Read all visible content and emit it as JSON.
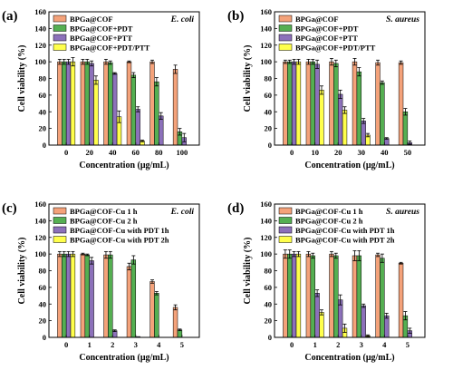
{
  "colors": {
    "orange": "#F4A27A",
    "green": "#55AF52",
    "purple": "#8C71BA",
    "yellow": "#FFFF4C"
  },
  "chart_data": [
    {
      "panel": "(a)",
      "organism": "E. coli",
      "type": "bar",
      "xlabel": "Concentration (μg/mL)",
      "ylabel": "Cell viability (%)",
      "ylim": [
        0,
        160
      ],
      "yticks": [
        0,
        20,
        40,
        60,
        80,
        100,
        120,
        140,
        160
      ],
      "legend_position": "top-left",
      "categories": [
        "0",
        "20",
        "40",
        "60",
        "80",
        "100"
      ],
      "series": [
        {
          "name": "BPGa@COF",
          "color": "orange",
          "values": [
            100,
            100,
            100,
            100,
            100,
            91
          ],
          "errors": [
            3,
            3,
            3,
            1,
            2,
            5
          ]
        },
        {
          "name": "BPGa@COF+PDT",
          "color": "green",
          "values": [
            100,
            100,
            99,
            84,
            76,
            16
          ],
          "errors": [
            3,
            3,
            2,
            3,
            5,
            4
          ]
        },
        {
          "name": "BPGa@COF+PTT",
          "color": "purple",
          "values": [
            100,
            98,
            86,
            43,
            35,
            9
          ],
          "errors": [
            3,
            3,
            1,
            3,
            4,
            5
          ]
        },
        {
          "name": "BPGa@COF+PDT/PTT",
          "color": "yellow",
          "values": [
            100,
            78,
            34,
            5,
            0,
            0
          ],
          "errors": [
            5,
            5,
            7,
            1,
            0,
            0
          ]
        }
      ]
    },
    {
      "panel": "(b)",
      "organism": "S. aureus",
      "type": "bar",
      "xlabel": "Concentration (μg/mL)",
      "ylabel": "Cell viability (%)",
      "ylim": [
        0,
        160
      ],
      "yticks": [
        0,
        20,
        40,
        60,
        80,
        100,
        120,
        140,
        160
      ],
      "legend_position": "top-left",
      "categories": [
        "0",
        "10",
        "20",
        "30",
        "40",
        "50"
      ],
      "series": [
        {
          "name": "BPGa@COF",
          "color": "orange",
          "values": [
            100,
            100,
            100,
            100,
            99,
            99
          ],
          "errors": [
            2,
            3,
            4,
            4,
            3,
            2
          ]
        },
        {
          "name": "BPGa@COF+PDT",
          "color": "green",
          "values": [
            100,
            100,
            98,
            88,
            75,
            40
          ],
          "errors": [
            2,
            3,
            4,
            5,
            2,
            4
          ]
        },
        {
          "name": "BPGa@COF+PTT",
          "color": "purple",
          "values": [
            100,
            97,
            61,
            29,
            8,
            3
          ],
          "errors": [
            3,
            5,
            5,
            3,
            1,
            2
          ]
        },
        {
          "name": "BPGa@COF+PDT/PTT",
          "color": "yellow",
          "values": [
            100,
            66,
            42,
            12,
            0,
            0
          ],
          "errors": [
            3,
            5,
            4,
            2,
            0,
            0
          ]
        }
      ]
    },
    {
      "panel": "(c)",
      "organism": "E. coli",
      "type": "bar",
      "xlabel": "Concentration (μg/mL)",
      "ylabel": "Cell viability (%)",
      "ylim": [
        0,
        160
      ],
      "yticks": [
        0,
        20,
        40,
        60,
        80,
        100,
        120,
        140,
        160
      ],
      "legend_position": "top-left",
      "categories": [
        "0",
        "1",
        "2",
        "3",
        "4",
        "5"
      ],
      "series": [
        {
          "name": "BPGa@COF-Cu 1 h",
          "color": "orange",
          "values": [
            100,
            100,
            99,
            85,
            67,
            36
          ],
          "errors": [
            3,
            1,
            4,
            4,
            2,
            3
          ]
        },
        {
          "name": "BPGa@COF-Cu 2 h",
          "color": "green",
          "values": [
            100,
            99,
            99,
            93,
            53,
            9
          ],
          "errors": [
            3,
            1,
            4,
            5,
            2,
            1
          ]
        },
        {
          "name": "BPGa@COF-Cu with PDT 1h",
          "color": "purple",
          "values": [
            100,
            92,
            8,
            1,
            0,
            0
          ],
          "errors": [
            3,
            4,
            1,
            0,
            0,
            0
          ]
        },
        {
          "name": "BPGa@COF-Cu with PDT 2h",
          "color": "yellow",
          "values": [
            100,
            0,
            0,
            0,
            0,
            0
          ],
          "errors": [
            3,
            0,
            0,
            0,
            0,
            0
          ]
        }
      ]
    },
    {
      "panel": "(d)",
      "organism": "S. aureus",
      "type": "bar",
      "xlabel": "Concentration (μg/mL)",
      "ylabel": "Cell viability (%)",
      "ylim": [
        0,
        160
      ],
      "yticks": [
        0,
        20,
        40,
        60,
        80,
        100,
        120,
        140,
        160
      ],
      "legend_position": "top-left",
      "categories": [
        "0",
        "1",
        "2",
        "3",
        "4",
        "5"
      ],
      "series": [
        {
          "name": "BPGa@COF-Cu 1 h",
          "color": "orange",
          "values": [
            100,
            100,
            100,
            98,
            99,
            89
          ],
          "errors": [
            5,
            3,
            3,
            6,
            2,
            1
          ]
        },
        {
          "name": "BPGa@COF-Cu 2 h",
          "color": "green",
          "values": [
            100,
            98,
            98,
            98,
            95,
            26
          ],
          "errors": [
            5,
            3,
            3,
            6,
            5,
            5
          ]
        },
        {
          "name": "BPGa@COF-Cu with PDT 1h",
          "color": "purple",
          "values": [
            100,
            53,
            45,
            38,
            26,
            8
          ],
          "errors": [
            3,
            4,
            6,
            2,
            3,
            3
          ]
        },
        {
          "name": "BPGa@COF-Cu with PDT 2h",
          "color": "yellow",
          "values": [
            100,
            30,
            11,
            2,
            0,
            0
          ],
          "errors": [
            3,
            3,
            5,
            1,
            0,
            0
          ]
        }
      ]
    }
  ]
}
